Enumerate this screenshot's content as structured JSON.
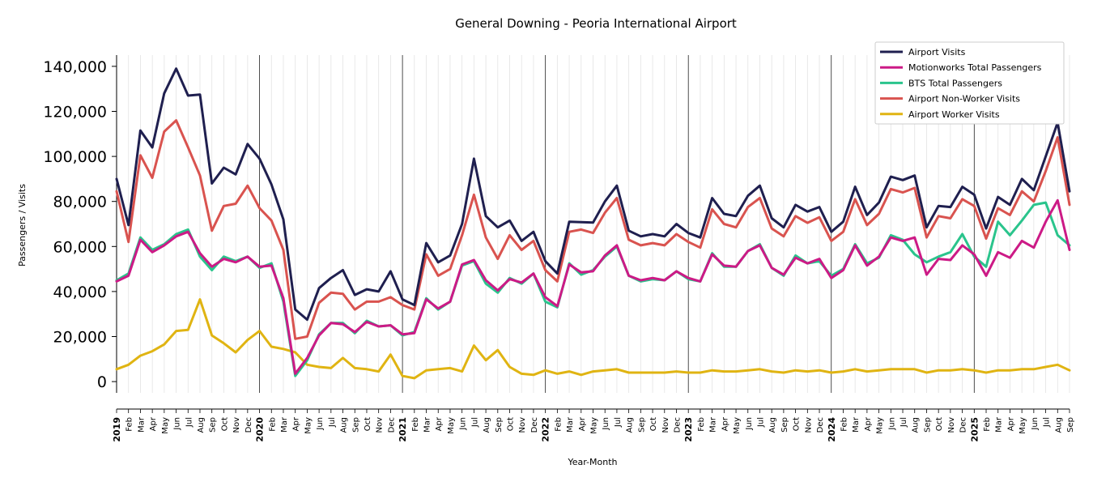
{
  "chart_data": {
    "type": "line",
    "title": "General Downing - Peoria International Airport",
    "xlabel": "Year-Month",
    "ylabel": "Passengers / Visits",
    "ylim": [
      -5000,
      145000
    ],
    "yticks": [
      0,
      20000,
      40000,
      60000,
      80000,
      100000,
      120000,
      140000
    ],
    "ytick_labels": [
      "0",
      "20,000",
      "40,000",
      "60,000",
      "80,000",
      "100,000",
      "120,000",
      "140,000"
    ],
    "grid": "vertical monthly lines, darker at year boundaries",
    "legend_position": "top-right",
    "month_labels": [
      "Feb",
      "Mar",
      "Apr",
      "May",
      "Jun",
      "Jul",
      "Aug",
      "Sep",
      "Oct",
      "Nov",
      "Dec"
    ],
    "year_labels": [
      "2019",
      "2020",
      "2021",
      "2022",
      "2023",
      "2024",
      "2025"
    ],
    "last_month_labels": [
      "Feb",
      "Mar",
      "Apr",
      "May",
      "Jun",
      "Jul",
      "Aug",
      "Sep"
    ],
    "x_start": "2019-01",
    "x_end": "2025-09",
    "series": [
      {
        "name": "Airport Visits",
        "color": "#1f1f4f",
        "values": [
          90000,
          69500,
          111500,
          104000,
          128000,
          139000,
          127000,
          127500,
          88000,
          95000,
          92000,
          105500,
          99000,
          87500,
          72000,
          32000,
          27500,
          41500,
          46000,
          49500,
          38500,
          41000,
          40000,
          49000,
          36500,
          34000,
          61500,
          53000,
          56000,
          70000,
          99000,
          73500,
          68500,
          71500,
          62500,
          66500,
          53500,
          48000,
          71000,
          70800,
          70600,
          80000,
          87000,
          67000,
          64500,
          65500,
          64500,
          70000,
          66000,
          64000,
          81500,
          74500,
          73500,
          82500,
          87000,
          72500,
          68500,
          78500,
          75500,
          77500,
          66500,
          71000,
          86500,
          74000,
          79500,
          91000,
          89500,
          91500,
          68500,
          78000,
          77500,
          86500,
          83000,
          68000,
          82000,
          78500,
          90000,
          85000,
          100000,
          115000,
          84500
        ]
      },
      {
        "name": "Motionworks Total Passengers",
        "color": "#cc1a86",
        "values": [
          44500,
          47000,
          63000,
          57500,
          60500,
          64500,
          66500,
          57000,
          51000,
          54500,
          53000,
          55500,
          51000,
          51500,
          37000,
          3500,
          10500,
          20500,
          26000,
          25500,
          22000,
          26500,
          24500,
          25000,
          21000,
          21500,
          36500,
          32500,
          35500,
          52000,
          54000,
          45000,
          40500,
          45500,
          44000,
          48000,
          37500,
          33500,
          52000,
          48500,
          49000,
          56000,
          60500,
          47000,
          45000,
          46000,
          45000,
          49000,
          46000,
          44500,
          56500,
          51500,
          51000,
          58000,
          60500,
          50500,
          47500,
          55000,
          52500,
          54500,
          46000,
          49500,
          60500,
          51500,
          55500,
          64000,
          62500,
          64000,
          47500,
          54500,
          54000,
          60500,
          56500,
          47000,
          57500,
          55000,
          62500,
          59500,
          71000,
          80500,
          58500
        ]
      },
      {
        "name": "BTS Total Passengers",
        "color": "#2ac48c",
        "values": [
          45000,
          48000,
          64000,
          58500,
          61000,
          65500,
          67500,
          55500,
          49500,
          55500,
          53500,
          55500,
          50500,
          52500,
          35500,
          2500,
          9500,
          21000,
          26000,
          26000,
          21500,
          27000,
          24500,
          25000,
          20500,
          22000,
          37000,
          32000,
          35500,
          51500,
          53500,
          43500,
          39500,
          46000,
          43500,
          48000,
          35500,
          33000,
          52500,
          47500,
          49500,
          55500,
          60000,
          47000,
          44500,
          45500,
          45000,
          49000,
          45500,
          44500,
          57000,
          51000,
          51000,
          58000,
          61000,
          50500,
          47000,
          56000,
          52500,
          53500,
          47000,
          50000,
          61000,
          52500,
          55000,
          65000,
          63000,
          56500,
          53000,
          55500,
          57500,
          65500,
          55500,
          51000,
          71000,
          65000,
          71500,
          78500,
          79500,
          65000,
          60500
        ]
      },
      {
        "name": "Airport Non-Worker Visits",
        "color": "#d9534f",
        "values": [
          84500,
          62000,
          100500,
          90500,
          111000,
          116000,
          104000,
          91500,
          67000,
          78000,
          79000,
          87000,
          77000,
          71500,
          58500,
          19000,
          20000,
          35000,
          39500,
          39000,
          32000,
          35500,
          35500,
          37500,
          34000,
          32000,
          56500,
          47000,
          50000,
          65000,
          83000,
          64000,
          54500,
          65000,
          58500,
          62500,
          49500,
          44500,
          66500,
          67500,
          66000,
          75000,
          81500,
          63000,
          60500,
          61500,
          60500,
          65500,
          62000,
          59500,
          76500,
          70000,
          68500,
          77500,
          81500,
          68000,
          64500,
          73500,
          70500,
          73000,
          62500,
          66500,
          81000,
          69500,
          74500,
          85500,
          84000,
          86000,
          64000,
          73500,
          72500,
          81000,
          78000,
          63500,
          77000,
          74000,
          84500,
          80000,
          93500,
          108500,
          78500
        ]
      },
      {
        "name": "Airport Worker Visits",
        "color": "#e0b412",
        "values": [
          5500,
          7500,
          11500,
          13500,
          16500,
          22500,
          23000,
          36500,
          20500,
          17000,
          13000,
          18500,
          22500,
          15500,
          14500,
          13000,
          7500,
          6500,
          6000,
          10500,
          6000,
          5500,
          4500,
          12000,
          2500,
          1500,
          5000,
          5500,
          6000,
          4500,
          16000,
          9500,
          14000,
          6500,
          3500,
          3000,
          5000,
          3500,
          4500,
          3000,
          4500,
          5000,
          5500,
          4000,
          4000,
          4000,
          4000,
          4500,
          4000,
          4000,
          5000,
          4500,
          4500,
          5000,
          5500,
          4500,
          4000,
          5000,
          4500,
          5000,
          4000,
          4500,
          5500,
          4500,
          5000,
          5500,
          5500,
          5500,
          4000,
          5000,
          5000,
          5500,
          5000,
          4000,
          5000,
          5000,
          5500,
          5500,
          6500,
          7500,
          5000
        ]
      }
    ]
  }
}
